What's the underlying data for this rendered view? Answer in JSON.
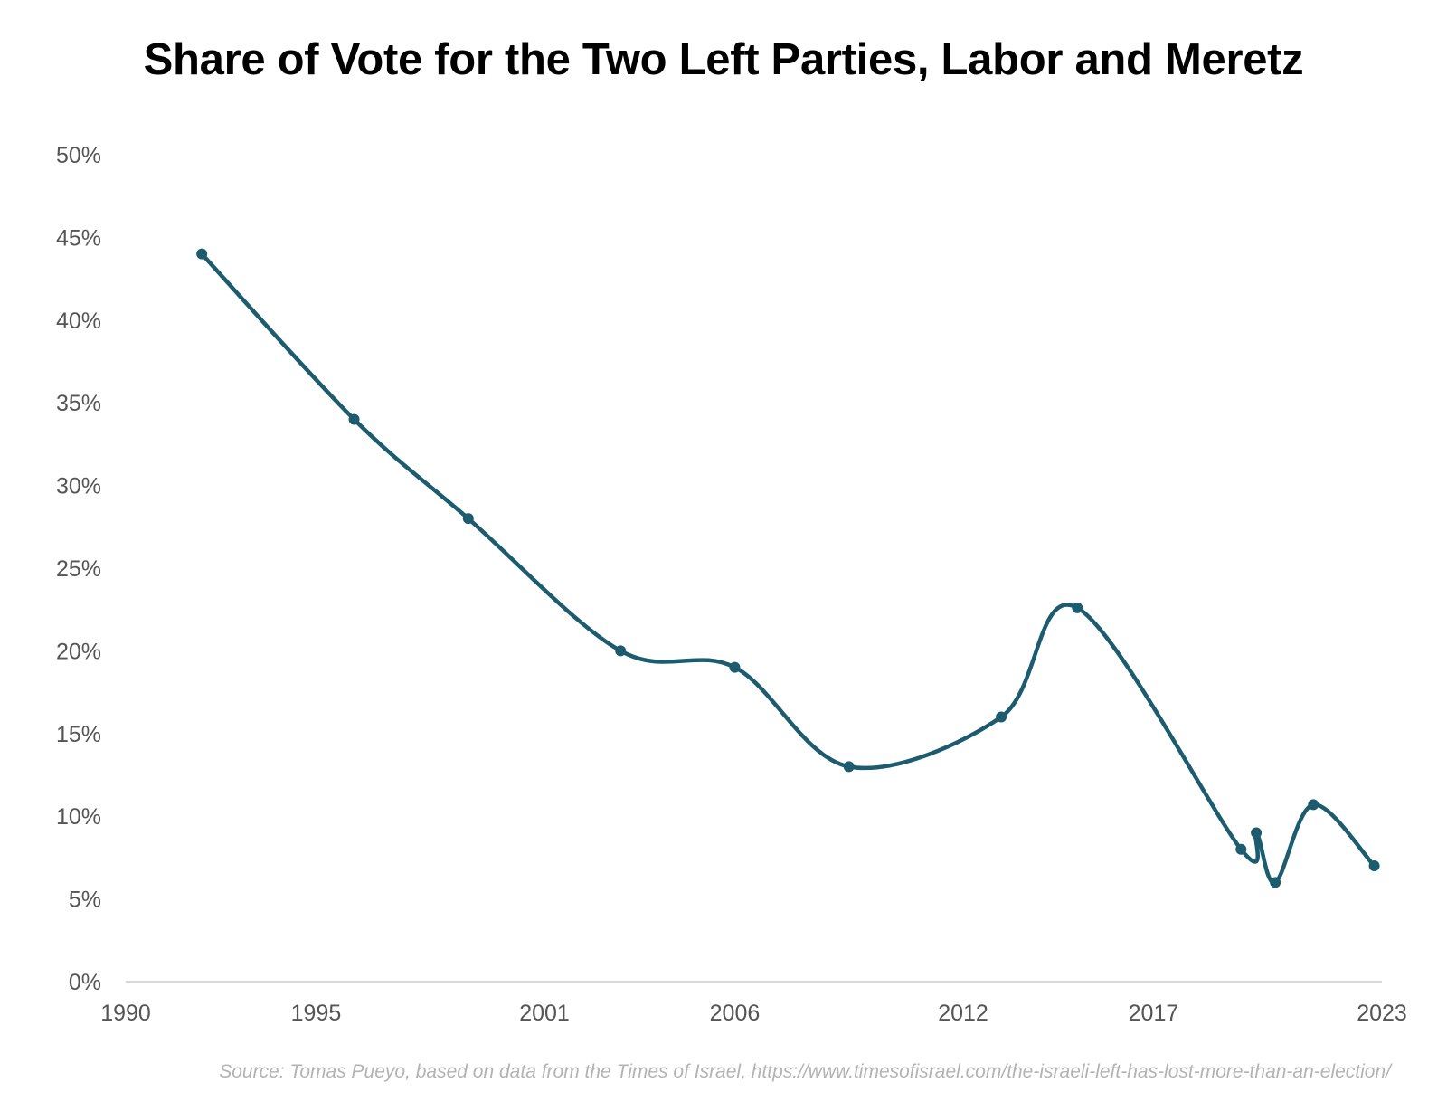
{
  "chart_data": {
    "type": "line",
    "title": "Share of Vote for the Two Left Parties, Labor and Meretz",
    "xlabel": "",
    "ylabel": "",
    "xlim": [
      1990,
      2023
    ],
    "ylim": [
      0,
      50
    ],
    "x_ticks": [
      "1990",
      "1995",
      "2001",
      "2006",
      "2012",
      "2017",
      "2023"
    ],
    "y_ticks": [
      "0%",
      "5%",
      "10%",
      "15%",
      "20%",
      "25%",
      "30%",
      "35%",
      "40%",
      "45%",
      "50%"
    ],
    "grid": false,
    "legend": "none",
    "series": [
      {
        "color": "#1d5b6e",
        "points": [
          {
            "x": 1992,
            "y": 44
          },
          {
            "x": 1996,
            "y": 34
          },
          {
            "x": 1999,
            "y": 28
          },
          {
            "x": 2003,
            "y": 20
          },
          {
            "x": 2006,
            "y": 19
          },
          {
            "x": 2009,
            "y": 13
          },
          {
            "x": 2013,
            "y": 16
          },
          {
            "x": 2015,
            "y": 22.6
          },
          {
            "x": 2019.3,
            "y": 8
          },
          {
            "x": 2019.7,
            "y": 9
          },
          {
            "x": 2020.2,
            "y": 6
          },
          {
            "x": 2021.2,
            "y": 10.7
          },
          {
            "x": 2022.8,
            "y": 7
          }
        ]
      }
    ],
    "axis_color": "#cccccc",
    "tick_label_color": "#555555"
  },
  "source": "Source: Tomas Pueyo, based on data from the Times of Israel, https://www.timesofisrael.com/the-israeli-left-has-lost-more-than-an-election/"
}
